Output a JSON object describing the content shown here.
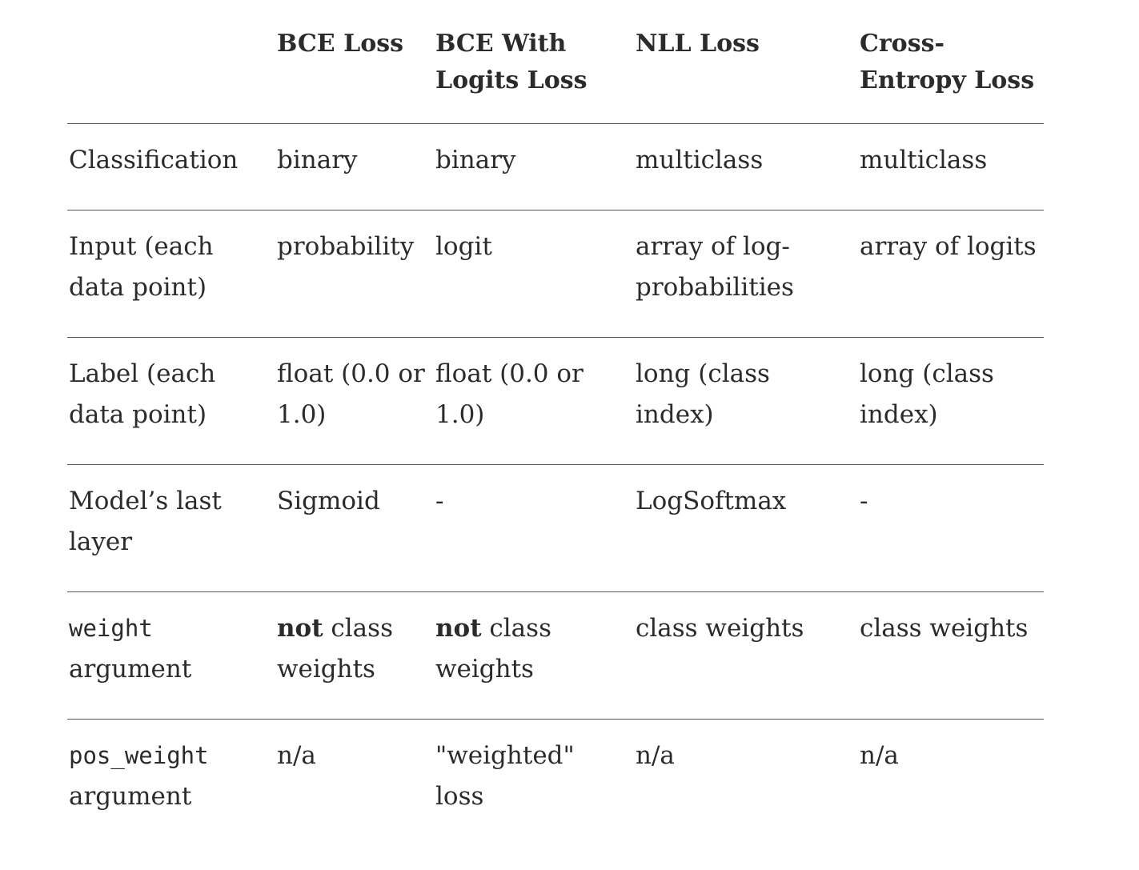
{
  "table": {
    "headers": [
      "",
      "BCE Loss",
      "BCE With Logits Loss",
      "NLL Loss",
      "Cross-Entropy Loss"
    ],
    "rows": {
      "classification": {
        "label": "Classification",
        "cells": [
          "binary",
          "binary",
          "multiclass",
          "multiclass"
        ]
      },
      "input": {
        "label": "Input (each data point)",
        "cells": [
          "probability",
          "logit",
          "array of log-probabilities",
          "array of logits"
        ]
      },
      "label_row": {
        "label": "Label (each data point)",
        "cells": [
          "float (0.0 or 1.0)",
          "float (0.0 or 1.0)",
          "long (class index)",
          "long (class index)"
        ]
      },
      "last_layer": {
        "label": "Model’s last layer",
        "cells": [
          "Sigmoid",
          "-",
          "LogSoftmax",
          "-"
        ]
      },
      "weight": {
        "label_code": "weight",
        "label_rest": "argument",
        "cells": [
          {
            "bold": "not",
            "rest": "class weights"
          },
          {
            "bold": "not",
            "rest": "class weights"
          },
          "class weights",
          "class weights"
        ]
      },
      "pos_weight": {
        "label_code": "pos_weight",
        "label_rest": "argument",
        "cells": [
          "n/a",
          "\"weighted\" loss",
          "n/a",
          "n/a"
        ]
      }
    }
  }
}
